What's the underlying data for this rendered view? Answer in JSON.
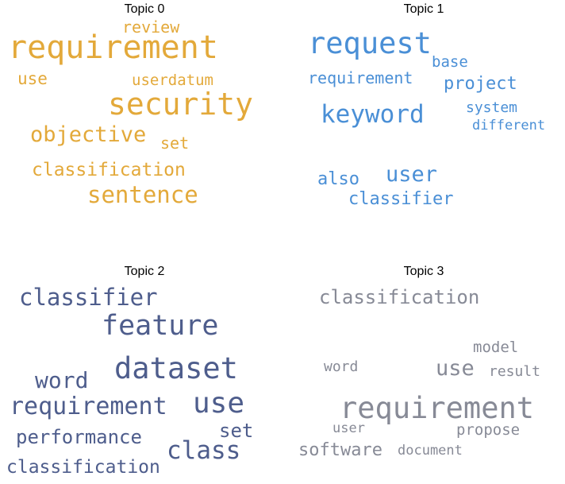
{
  "chart_data": {
    "type": "wordcloud",
    "panels": [
      {
        "title": "Topic 0",
        "color": "#e3a93a",
        "words": [
          {
            "text": "review",
            "weight": 0.4
          },
          {
            "text": "requirement",
            "weight": 0.78
          },
          {
            "text": "use",
            "weight": 0.45
          },
          {
            "text": "userdatum",
            "weight": 0.42
          },
          {
            "text": "security",
            "weight": 0.85
          },
          {
            "text": "objective",
            "weight": 0.6
          },
          {
            "text": "set",
            "weight": 0.45
          },
          {
            "text": "classification",
            "weight": 0.55
          },
          {
            "text": "sentence",
            "weight": 0.65
          }
        ]
      },
      {
        "title": "Topic 1",
        "color": "#4a8fd6",
        "words": [
          {
            "text": "request",
            "weight": 0.85
          },
          {
            "text": "base",
            "weight": 0.4
          },
          {
            "text": "requirement",
            "weight": 0.45
          },
          {
            "text": "project",
            "weight": 0.5
          },
          {
            "text": "keyword",
            "weight": 0.7
          },
          {
            "text": "system",
            "weight": 0.4
          },
          {
            "text": "different",
            "weight": 0.38
          },
          {
            "text": "also",
            "weight": 0.5
          },
          {
            "text": "user",
            "weight": 0.62
          },
          {
            "text": "classifier",
            "weight": 0.5
          }
        ]
      },
      {
        "title": "Topic 2",
        "color": "#4e5d8c",
        "words": [
          {
            "text": "classifier",
            "weight": 0.7
          },
          {
            "text": "feature",
            "weight": 0.8
          },
          {
            "text": "dataset",
            "weight": 0.85
          },
          {
            "text": "word",
            "weight": 0.62
          },
          {
            "text": "use",
            "weight": 0.78
          },
          {
            "text": "requirement",
            "weight": 0.7
          },
          {
            "text": "set",
            "weight": 0.55
          },
          {
            "text": "performance",
            "weight": 0.58
          },
          {
            "text": "class",
            "weight": 0.7
          },
          {
            "text": "classification",
            "weight": 0.56
          }
        ]
      },
      {
        "title": "Topic 3",
        "color": "#878a96",
        "words": [
          {
            "text": "classification",
            "weight": 0.58
          },
          {
            "text": "model",
            "weight": 0.44
          },
          {
            "text": "word",
            "weight": 0.42
          },
          {
            "text": "use",
            "weight": 0.58
          },
          {
            "text": "result",
            "weight": 0.4
          },
          {
            "text": "requirement",
            "weight": 0.85
          },
          {
            "text": "user",
            "weight": 0.38
          },
          {
            "text": "propose",
            "weight": 0.45
          },
          {
            "text": "software",
            "weight": 0.5
          },
          {
            "text": "document",
            "weight": 0.38
          }
        ]
      }
    ]
  }
}
